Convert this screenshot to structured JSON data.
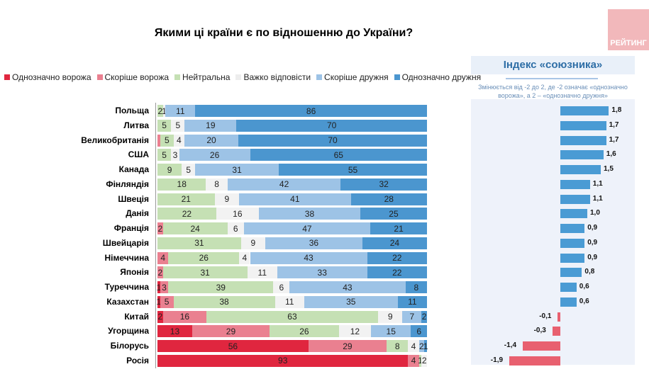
{
  "title": "Якими ці країни є по відношенню до України?",
  "logo": "РЕЙТИНГ",
  "index_panel": {
    "title": "Індекс «союзника»",
    "subtitle": "Змінюється від -2 до 2, де -2 означає «однозначно ворожа», а 2 – «однозначно дружня»",
    "positive_color": "#4a9bd4",
    "negative_color": "#e8606f"
  },
  "chart_data": [
    {
      "type": "bar",
      "orientation": "horizontal",
      "stacked": true,
      "unit": "%",
      "title": "Якими ці країни є по відношенню до України?",
      "legend_position": "top",
      "categories": [
        "Польща",
        "Литва",
        "Великобританія",
        "США",
        "Канада",
        "Фінляндія",
        "Швеція",
        "Данія",
        "Франція",
        "Швейцарія",
        "Німеччина",
        "Японія",
        "Туреччина",
        "Казахстан",
        "Китай",
        "Угорщина",
        "Білорусь",
        "Росія"
      ],
      "series": [
        {
          "name": "Однозначно ворожа",
          "color": "#e0263f",
          "values": [
            0,
            0,
            0,
            0,
            0,
            0,
            0,
            0,
            0,
            0,
            0,
            0,
            1,
            1,
            2,
            13,
            56,
            93
          ]
        },
        {
          "name": "Скоріше ворожа",
          "color": "#ea8090",
          "values": [
            0,
            0,
            1,
            0,
            0,
            0,
            0,
            0,
            2,
            0,
            4,
            2,
            3,
            5,
            16,
            29,
            29,
            4
          ]
        },
        {
          "name": "Нейтральна",
          "color": "#c5e0b4",
          "values": [
            2,
            5,
            5,
            5,
            9,
            18,
            21,
            22,
            24,
            31,
            26,
            31,
            39,
            38,
            63,
            26,
            8,
            1
          ]
        },
        {
          "name": "Важко відповісти",
          "color": "#f2f2f2",
          "values": [
            1,
            5,
            4,
            3,
            5,
            8,
            9,
            16,
            6,
            9,
            4,
            11,
            6,
            11,
            9,
            12,
            4,
            2
          ]
        },
        {
          "name": "Скоріше дружня",
          "color": "#9dc3e6",
          "values": [
            11,
            19,
            20,
            26,
            31,
            42,
            41,
            38,
            47,
            36,
            43,
            33,
            43,
            35,
            7,
            15,
            2,
            0
          ]
        },
        {
          "name": "Однозначно дружня",
          "color": "#4b96cf",
          "values": [
            86,
            70,
            70,
            65,
            55,
            32,
            28,
            25,
            21,
            24,
            22,
            22,
            8,
            11,
            2,
            6,
            1,
            0
          ]
        }
      ],
      "hidden_labels": [
        [
          2,
          1
        ]
      ]
    },
    {
      "type": "bar",
      "orientation": "horizontal",
      "title": "Індекс «союзника»",
      "categories": [
        "Польща",
        "Литва",
        "Великобританія",
        "США",
        "Канада",
        "Фінляндія",
        "Швеція",
        "Данія",
        "Франція",
        "Швейцарія",
        "Німеччина",
        "Японія",
        "Туреччина",
        "Казахстан",
        "Китай",
        "Угорщина",
        "Білорусь",
        "Росія"
      ],
      "values": [
        1.8,
        1.7,
        1.7,
        1.6,
        1.5,
        1.1,
        1.1,
        1.0,
        0.9,
        0.9,
        0.9,
        0.8,
        0.6,
        0.6,
        -0.1,
        -0.3,
        -1.4,
        -1.9
      ],
      "value_labels": [
        "1,8",
        "1,7",
        "1,7",
        "1,6",
        "1,5",
        "1,1",
        "1,1",
        "1,0",
        "0,9",
        "0,9",
        "0,9",
        "0,8",
        "0,6",
        "0,6",
        "-0,1",
        "-0,3",
        "-1,4",
        "-1,9"
      ],
      "xlim": [
        -2,
        2
      ]
    }
  ]
}
